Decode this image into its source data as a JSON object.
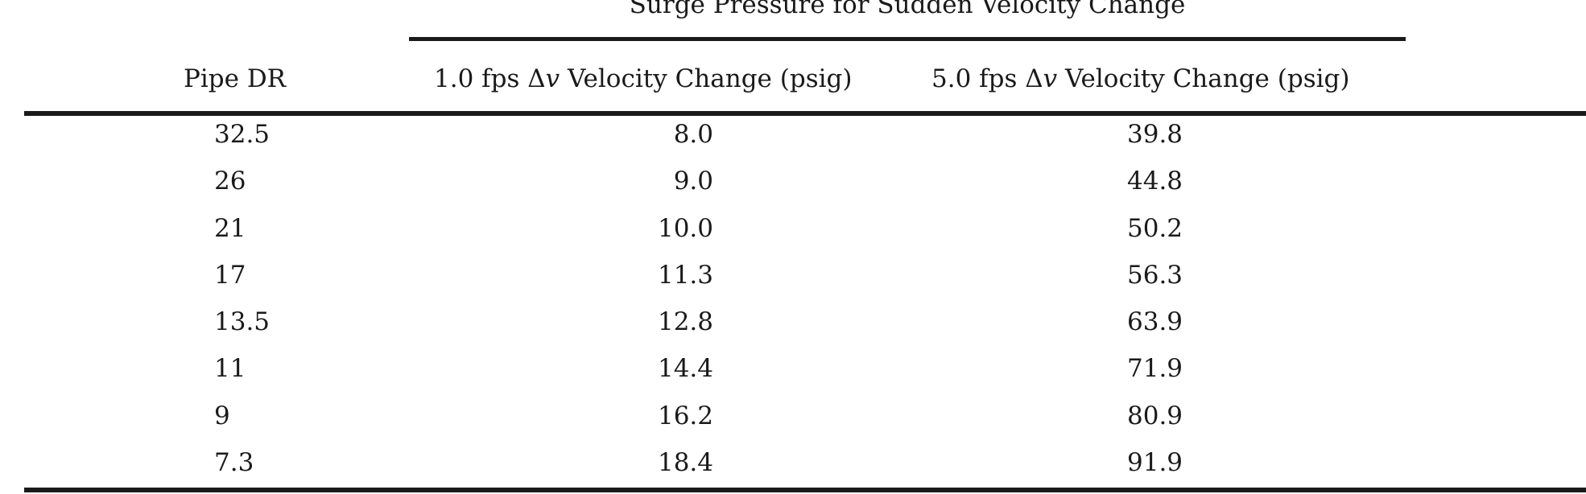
{
  "table": {
    "group_header": "Surge Pressure for Sudden Velocity Change",
    "columns": [
      {
        "prefix": "Pipe DR",
        "delta": "",
        "var": "",
        "suffix": ""
      },
      {
        "prefix": "1.0 fps ",
        "delta": "Δ",
        "var": "v",
        "suffix": " Velocity Change (psig)"
      },
      {
        "prefix": "5.0 fps ",
        "delta": "Δ",
        "var": "v",
        "suffix": " Velocity Change (psig)"
      }
    ],
    "rows": [
      {
        "dr": "32.5",
        "v1": "8.0",
        "v5": "39.8"
      },
      {
        "dr": "26",
        "v1": "9.0",
        "v5": "44.8"
      },
      {
        "dr": "21",
        "v1": "10.0",
        "v5": "50.2"
      },
      {
        "dr": "17",
        "v1": "11.3",
        "v5": "56.3"
      },
      {
        "dr": "13.5",
        "v1": "12.8",
        "v5": "63.9"
      },
      {
        "dr": "11",
        "v1": "14.4",
        "v5": "71.9"
      },
      {
        "dr": "9",
        "v1": "16.2",
        "v5": "80.9"
      },
      {
        "dr": "7.3",
        "v1": "18.4",
        "v5": "91.9"
      }
    ]
  }
}
